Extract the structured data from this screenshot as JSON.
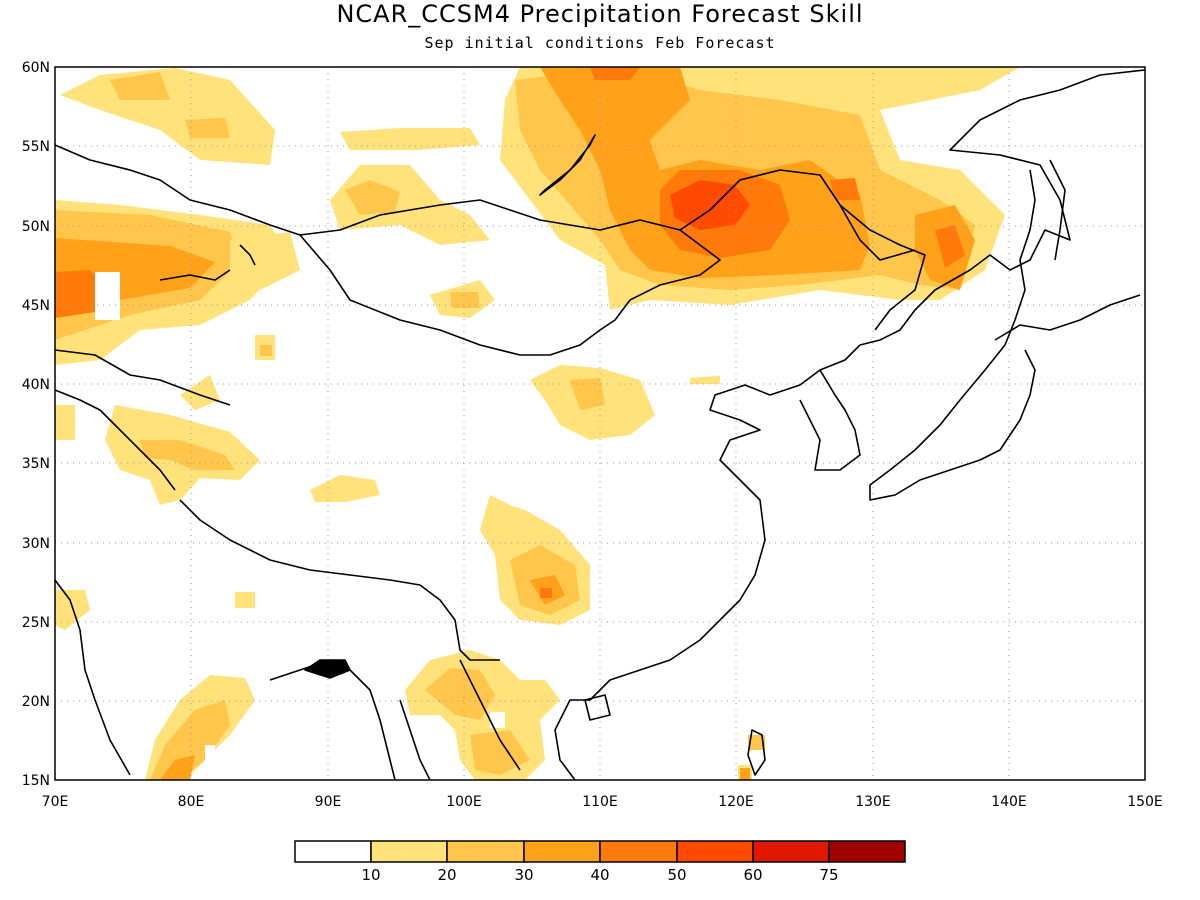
{
  "title": "NCAR_CCSM4 Precipitation Forecast Skill",
  "subtitle": "Sep initial conditions  Feb Forecast",
  "map": {
    "lon_range": [
      70,
      150
    ],
    "lat_range": [
      15,
      60
    ],
    "lon_labels": [
      "70E",
      "80E",
      "90E",
      "100E",
      "110E",
      "120E",
      "130E",
      "140E",
      "150E"
    ],
    "lat_labels": [
      "15N",
      "20N",
      "25N",
      "30N",
      "35N",
      "40N",
      "45N",
      "50N",
      "55N",
      "60N"
    ],
    "grid": true
  },
  "colorbar": {
    "labels": [
      "10",
      "20",
      "30",
      "40",
      "50",
      "60",
      "75"
    ],
    "colors": [
      "#ffffff",
      "#ffe27a",
      "#ffc64b",
      "#ffa21a",
      "#ff7a0a",
      "#ff4a00",
      "#e01800",
      "#a00000"
    ]
  }
}
